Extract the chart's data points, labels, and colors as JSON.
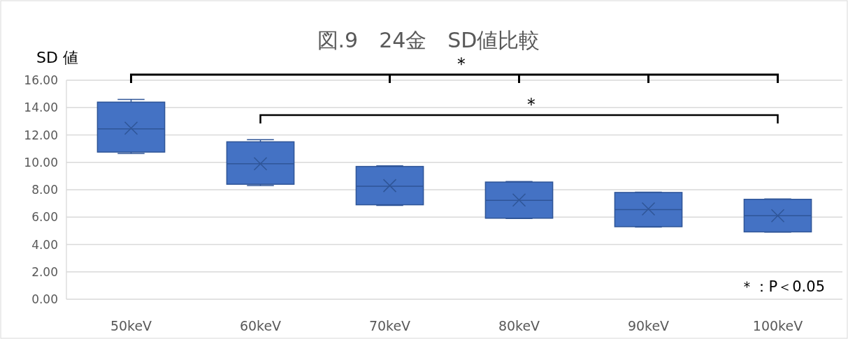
{
  "chart_data": {
    "type": "box",
    "title": "図.9　24金　SD値比較",
    "ylabel": "SD 値",
    "categories": [
      "50keV",
      "60keV",
      "70keV",
      "80keV",
      "90keV",
      "100keV"
    ],
    "series": [
      {
        "color": "#4472c4",
        "boxes": [
          {
            "low": 10.65,
            "q1": 10.75,
            "median": 12.45,
            "q3": 14.4,
            "high": 14.6,
            "mean": 12.5
          },
          {
            "low": 8.3,
            "q1": 8.4,
            "median": 9.9,
            "q3": 11.5,
            "high": 11.65,
            "mean": 9.9
          },
          {
            "low": 6.85,
            "q1": 6.9,
            "median": 8.25,
            "q3": 9.7,
            "high": 9.75,
            "mean": 8.3
          },
          {
            "low": 5.9,
            "q1": 5.92,
            "median": 7.22,
            "q3": 8.56,
            "high": 8.6,
            "mean": 7.25
          },
          {
            "low": 5.28,
            "q1": 5.3,
            "median": 6.55,
            "q3": 7.8,
            "high": 7.82,
            "mean": 6.6
          },
          {
            "low": 4.9,
            "q1": 4.92,
            "median": 6.1,
            "q3": 7.3,
            "high": 7.32,
            "mean": 6.1
          }
        ]
      }
    ],
    "ylim": [
      0,
      16
    ],
    "yticks": [
      {
        "value": 0,
        "label": "0.00"
      },
      {
        "value": 2,
        "label": "2.00"
      },
      {
        "value": 4,
        "label": "4.00"
      },
      {
        "value": 6,
        "label": "6.00"
      },
      {
        "value": 8,
        "label": "8.00"
      },
      {
        "value": 10,
        "label": "10.00"
      },
      {
        "value": 12,
        "label": "12.00"
      },
      {
        "value": 14,
        "label": "14.00"
      },
      {
        "value": 16,
        "label": "16.00"
      }
    ],
    "grid": "y",
    "annotations": [
      "＊",
      "＊",
      "＊：P＜0.05"
    ]
  }
}
